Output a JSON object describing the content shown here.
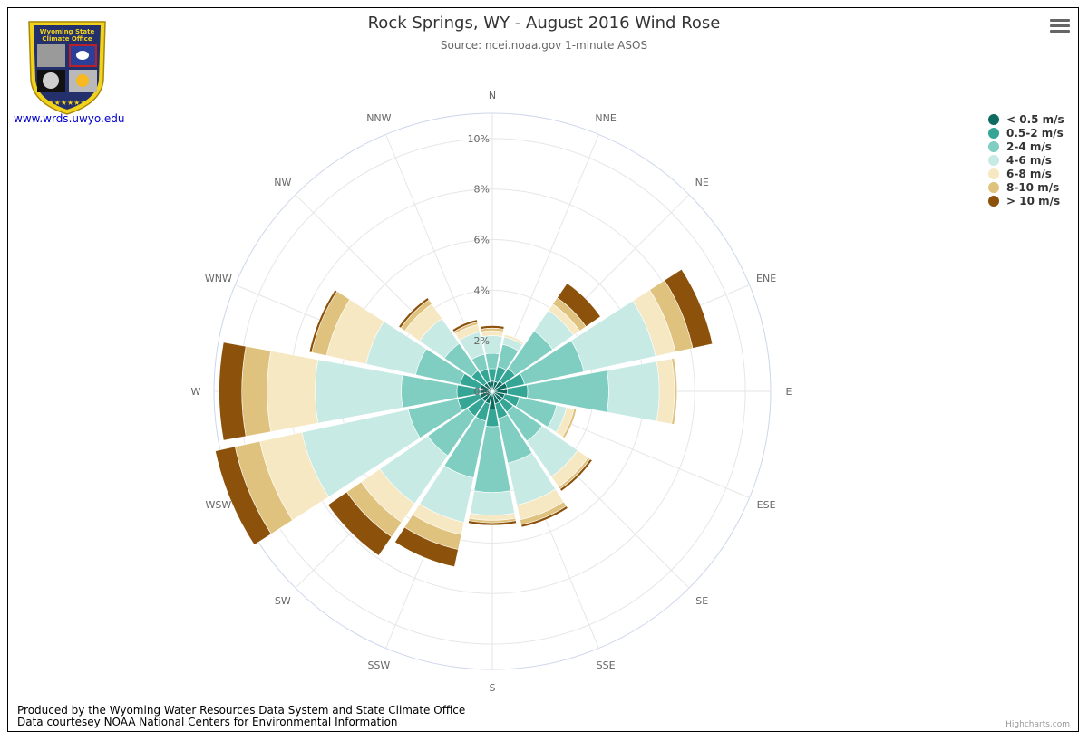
{
  "title": "Rock Springs, WY - August 2016 Wind Rose",
  "subtitle": "Source: ncei.noaa.gov 1-minute ASOS",
  "logo": {
    "top_text": "Wyoming State",
    "bottom_text": "Climate Office"
  },
  "site_link": "www.wrds.uwyo.edu",
  "credits": {
    "line1": "Produced by the Wyoming Water Resources Data System and State Climate Office",
    "line2": "Data courtesey NOAA National Centers for Environmental Information"
  },
  "highcharts_credit": "Highcharts.com",
  "menu_icon": "hamburger-icon",
  "chart_data": {
    "type": "windrose",
    "categories": [
      "N",
      "NNE",
      "NE",
      "ENE",
      "E",
      "ESE",
      "SE",
      "SSE",
      "S",
      "SSW",
      "SW",
      "WSW",
      "W",
      "WNW",
      "NW",
      "NNW"
    ],
    "radial_ticks": [
      "0%",
      "2%",
      "4%",
      "6%",
      "8%",
      "10%"
    ],
    "ylim": [
      0,
      11
    ],
    "stacking": "normal",
    "legend_position": "top-right",
    "series": [
      {
        "name": "< 0.5 m/s",
        "color": "#0d6b60",
        "values": [
          0.4,
          0.4,
          0.5,
          0.6,
          0.6,
          0.5,
          0.5,
          0.5,
          0.7,
          0.5,
          0.5,
          0.5,
          0.5,
          0.5,
          0.4,
          0.4
        ]
      },
      {
        "name": "0.5-2 m/s",
        "color": "#35a596",
        "values": [
          0.5,
          0.6,
          0.6,
          0.7,
          0.8,
          0.6,
          0.5,
          0.6,
          0.7,
          0.7,
          0.7,
          0.9,
          0.9,
          0.8,
          0.6,
          0.5
        ]
      },
      {
        "name": "2-4 m/s",
        "color": "#80cdc1",
        "values": [
          0.6,
          0.9,
          1.8,
          2.4,
          3.2,
          1.5,
          1.4,
          1.8,
          2.6,
          2.3,
          1.9,
          2.0,
          2.2,
          1.8,
          1.3,
          0.6
        ]
      },
      {
        "name": "4-6 m/s",
        "color": "#c7eae5",
        "values": [
          0.7,
          0.3,
          1.0,
          2.9,
          2.0,
          0.4,
          1.7,
          1.7,
          0.9,
          1.8,
          2.3,
          4.3,
          3.4,
          2.0,
          1.2,
          0.9
        ]
      },
      {
        "name": "6-8 m/s",
        "color": "#f6e8c3",
        "values": [
          0.2,
          0.1,
          0.3,
          0.8,
          0.6,
          0.3,
          0.5,
          0.6,
          0.2,
          0.5,
          0.9,
          1.7,
          1.9,
          1.6,
          0.7,
          0.3
        ]
      },
      {
        "name": "8-10 m/s",
        "color": "#dfc27d",
        "values": [
          0.1,
          0.0,
          0.3,
          0.7,
          0.1,
          0.1,
          0.1,
          0.2,
          0.1,
          0.6,
          0.7,
          1.0,
          1.0,
          0.6,
          0.2,
          0.1
        ]
      },
      {
        "name": "> 10 m/s",
        "color": "#8c510a",
        "values": [
          0.1,
          0.0,
          0.7,
          0.8,
          0.0,
          0.0,
          0.1,
          0.1,
          0.1,
          0.7,
          0.9,
          0.8,
          0.9,
          0.1,
          0.1,
          0.1
        ]
      }
    ]
  }
}
